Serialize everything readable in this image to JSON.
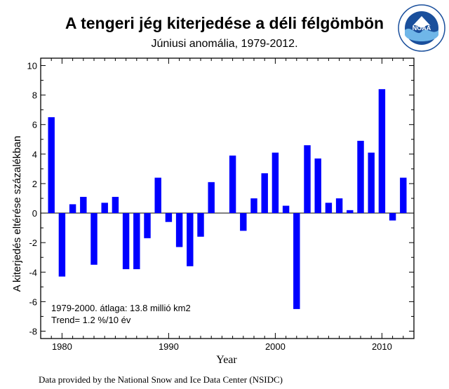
{
  "header": {
    "title": "A tengeri jég kiterjedése a déli félgömbön",
    "subtitle": "Júniusi anomália, 1979-2012."
  },
  "footer": {
    "source": "Data provided by the National Snow and Ice Data Center (NSIDC)"
  },
  "logo": {
    "name": "noaa-logo",
    "text": "NOAA",
    "ring_text": "NATIONAL OCEANIC AND ATMOSPHERIC ADMINISTRATION · U.S. DEPARTMENT OF COMMERCE",
    "colors": {
      "blue": "#1a4f9c",
      "light": "#6fb6e8"
    }
  },
  "chart_data": {
    "type": "bar",
    "title": "A tengeri jég kiterjedése a déli félgömbön",
    "subtitle": "Júniusi anomália, 1979-2012.",
    "xlabel": "Year",
    "ylabel": "A kiterjedés eltérése százalékban",
    "xlim": [
      1978,
      2013
    ],
    "ylim": [
      -8.5,
      10.5
    ],
    "xticks": [
      1980,
      1990,
      2000,
      2010
    ],
    "yticks": [
      -8,
      -6,
      -4,
      -2,
      0,
      2,
      4,
      6,
      8,
      10
    ],
    "bar_color": "#0000ff",
    "grid": false,
    "annotations": [
      "1979-2000. átlaga: 13.8 millió km2",
      "Trend= 1.2 %/10 év"
    ],
    "x": [
      1979,
      1980,
      1981,
      1982,
      1983,
      1984,
      1985,
      1986,
      1987,
      1988,
      1989,
      1990,
      1991,
      1992,
      1993,
      1994,
      1995,
      1996,
      1997,
      1998,
      1999,
      2000,
      2001,
      2002,
      2003,
      2004,
      2005,
      2006,
      2007,
      2008,
      2009,
      2010,
      2011,
      2012
    ],
    "values": [
      6.5,
      -4.3,
      0.6,
      1.1,
      -3.5,
      0.7,
      1.1,
      -3.8,
      -3.8,
      -1.7,
      2.4,
      -0.6,
      -2.3,
      -3.6,
      -1.6,
      2.1,
      null,
      3.9,
      -1.2,
      1.0,
      2.7,
      4.1,
      0.5,
      -6.5,
      4.6,
      3.7,
      0.7,
      1.0,
      0.2,
      4.9,
      4.1,
      8.4,
      -0.5,
      2.4
    ]
  }
}
